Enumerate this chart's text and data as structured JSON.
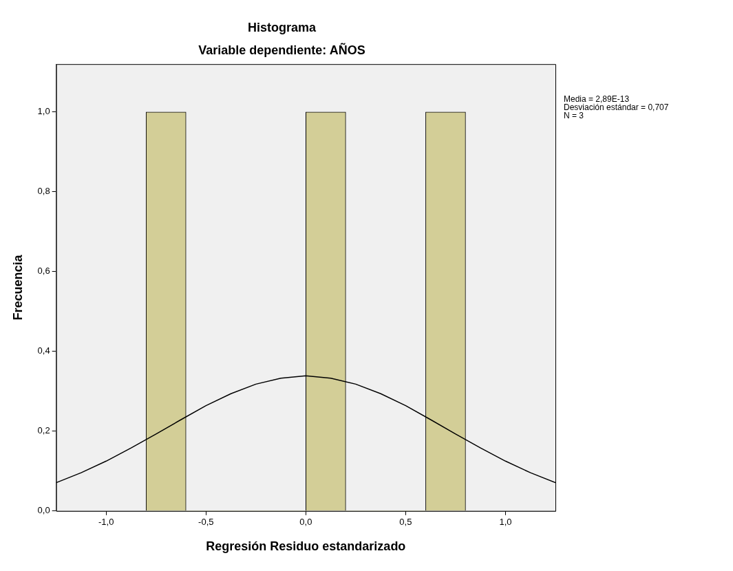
{
  "chart_data": {
    "type": "histogram",
    "title": "Histograma",
    "subtitle": "Variable dependiente: AÑOS",
    "xlabel": "Regresión Residuo estandarizado",
    "ylabel": "Frecuencia",
    "bins": [
      -0.8,
      -0.6,
      -0.4,
      -0.2,
      0,
      0.2,
      0.4,
      0.6,
      0.8
    ],
    "values": [
      1,
      0,
      0,
      0,
      1,
      0,
      0,
      1
    ],
    "color": "#d3ce97",
    "series": [
      {
        "type": "line",
        "color": "#000000",
        "x": [
          -1.25,
          -1.125,
          -1,
          -0.875,
          -0.75,
          -0.625,
          -0.5,
          -0.375,
          -0.25,
          -0.125,
          0,
          0.125,
          0.25,
          0.375,
          0.5,
          0.625,
          0.75,
          0.875,
          1,
          1.125,
          1.25
        ],
        "values": [
          0.071,
          0.096,
          0.125,
          0.158,
          0.193,
          0.229,
          0.264,
          0.294,
          0.318,
          0.333,
          0.339,
          0.333,
          0.318,
          0.294,
          0.264,
          0.229,
          0.193,
          0.158,
          0.125,
          0.096,
          0.071
        ]
      }
    ],
    "xlim": [
      -1.25,
      1.25
    ],
    "xticks": [
      {
        "value": -1,
        "label": "-1,0"
      },
      {
        "value": -0.5,
        "label": "-0,5"
      },
      {
        "value": 0,
        "label": "0,0"
      },
      {
        "value": 0.5,
        "label": "0,5"
      },
      {
        "value": 1,
        "label": "1,0"
      }
    ],
    "ylim": [
      0,
      1.12
    ],
    "yticks": [
      {
        "value": 0,
        "label": "0,0"
      },
      {
        "value": 0.2,
        "label": "0,2"
      },
      {
        "value": 0.4,
        "label": "0,4"
      },
      {
        "value": 0.6,
        "label": "0,6"
      },
      {
        "value": 0.8,
        "label": "0,8"
      },
      {
        "value": 1,
        "label": "1,0"
      }
    ],
    "grid": false,
    "legend": false,
    "marker": "none",
    "line_style": "solid",
    "annotations": [
      "Media = 2,89E-13",
      "Desviación estándar = 0,707",
      "N = 3"
    ]
  }
}
